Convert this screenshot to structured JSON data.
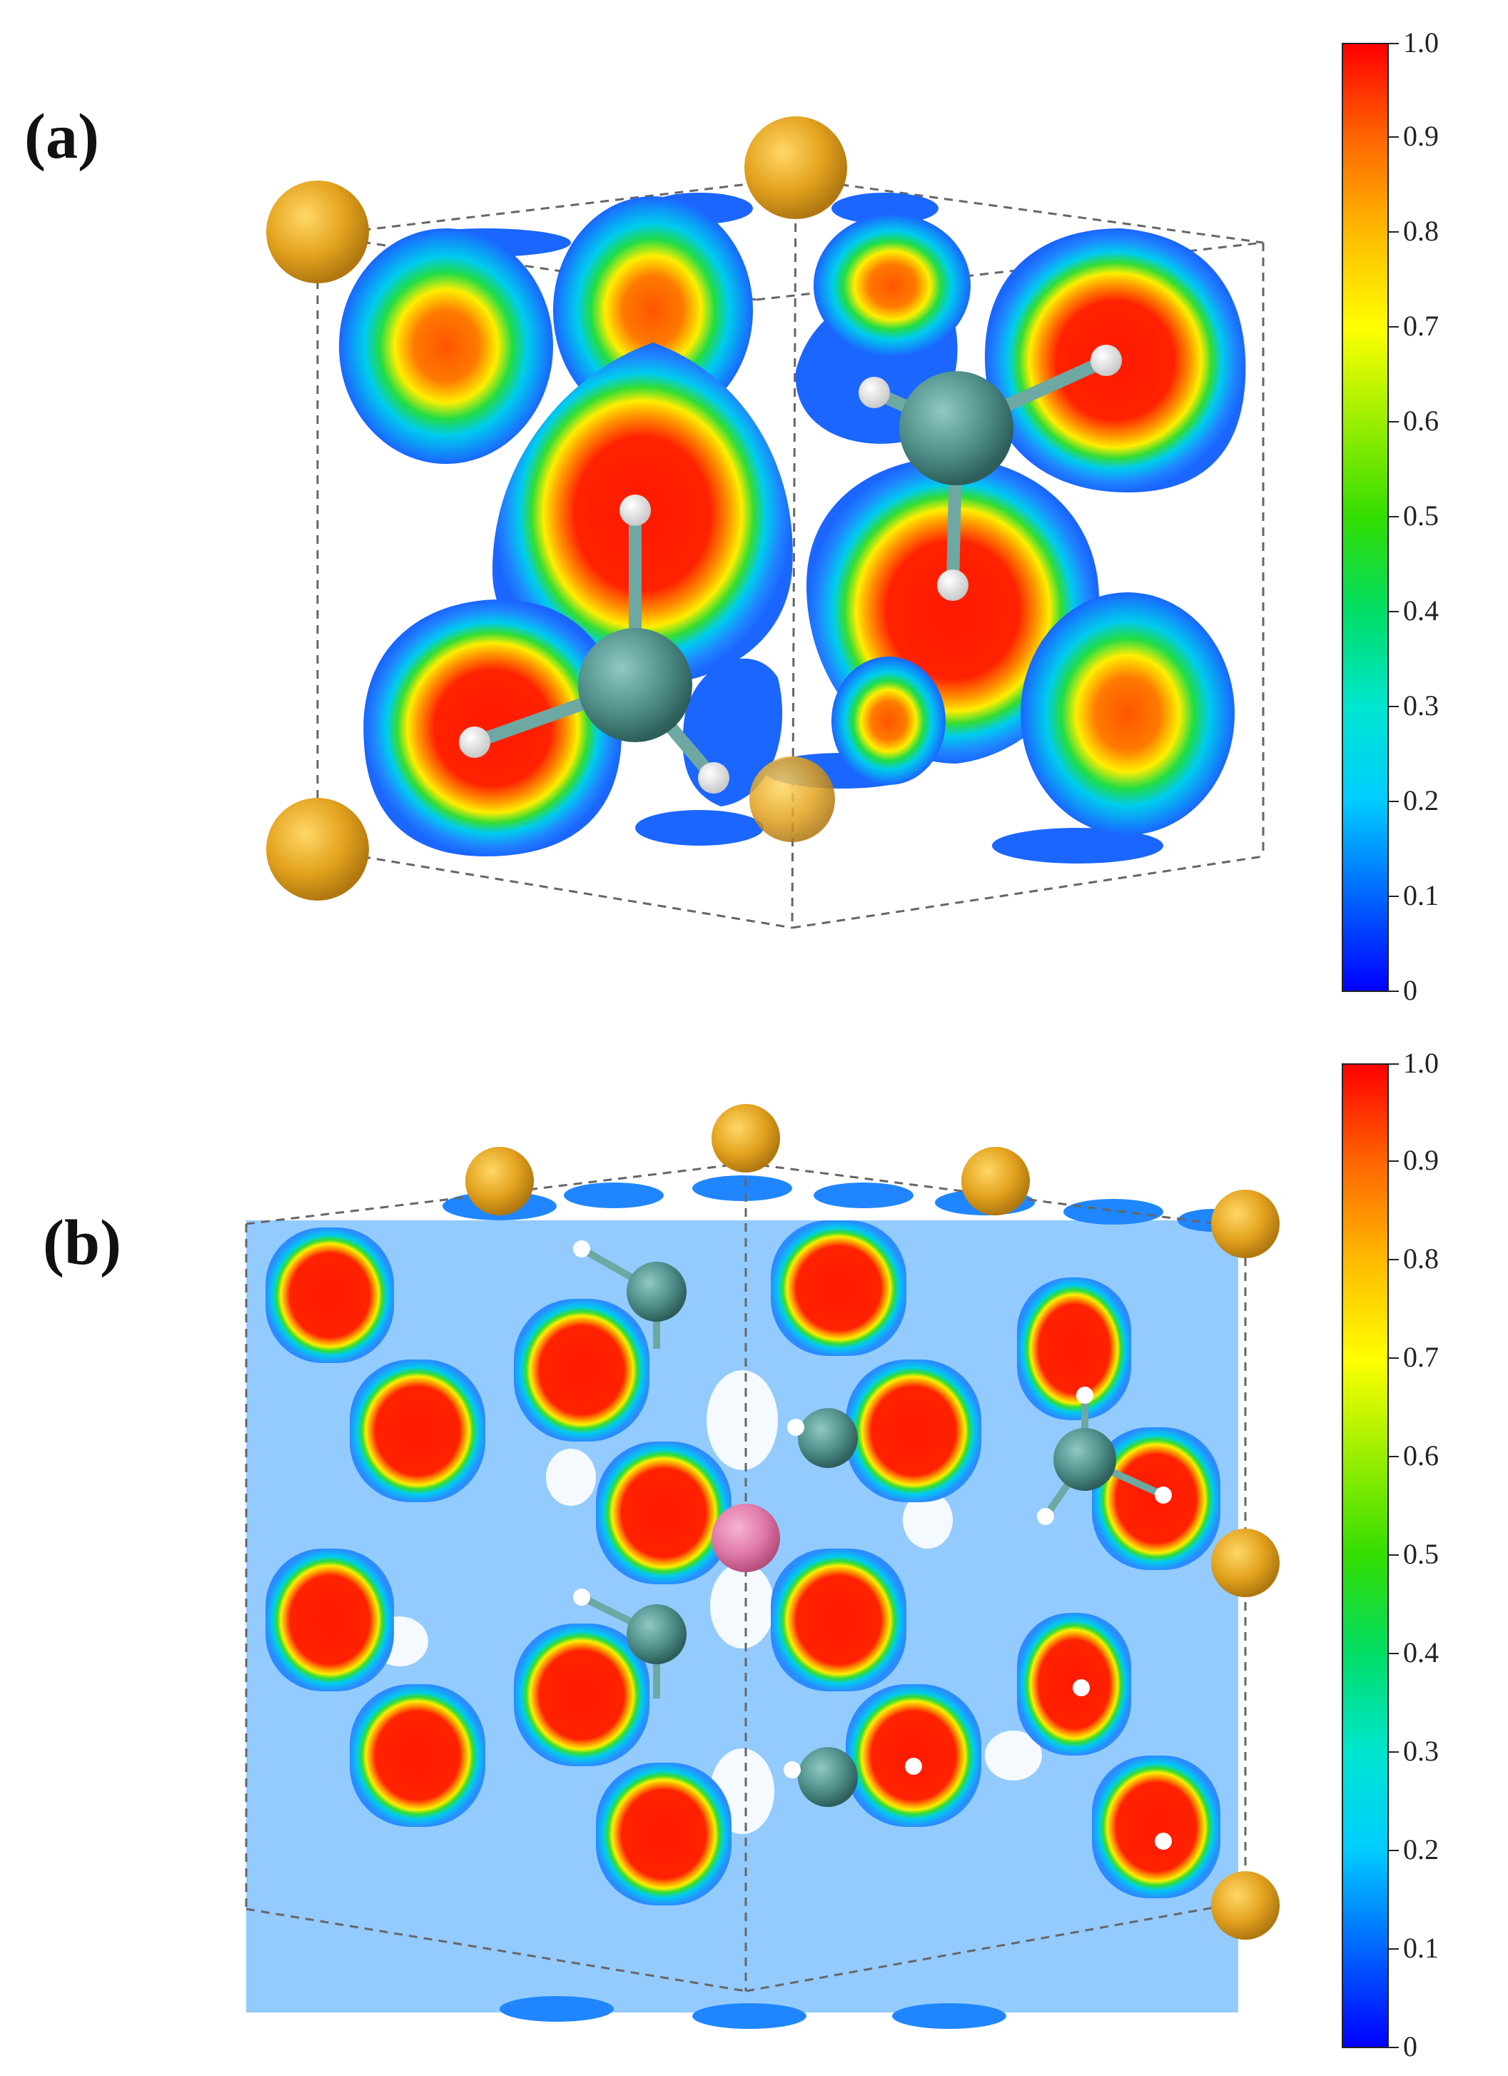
{
  "figure": {
    "panels": [
      {
        "id": "a",
        "label": "(a)"
      },
      {
        "id": "b",
        "label": "(b)"
      }
    ],
    "colorbar": {
      "ticks": [
        "0",
        "0.1",
        "0.2",
        "0.3",
        "0.4",
        "0.5",
        "0.6",
        "0.7",
        "0.8",
        "0.9",
        "1.0"
      ],
      "colors": [
        "#0000ff",
        "#0066ff",
        "#00ccff",
        "#00e6d0",
        "#00dd66",
        "#33dd00",
        "#99ee00",
        "#ffff00",
        "#ffbb00",
        "#ff6600",
        "#ff0000"
      ]
    },
    "atom_colors": {
      "metal": "#e3a21e",
      "carbon": "#4f8f8a",
      "hydrogen": "#f4f4f4",
      "center": "#e07aa8"
    }
  }
}
